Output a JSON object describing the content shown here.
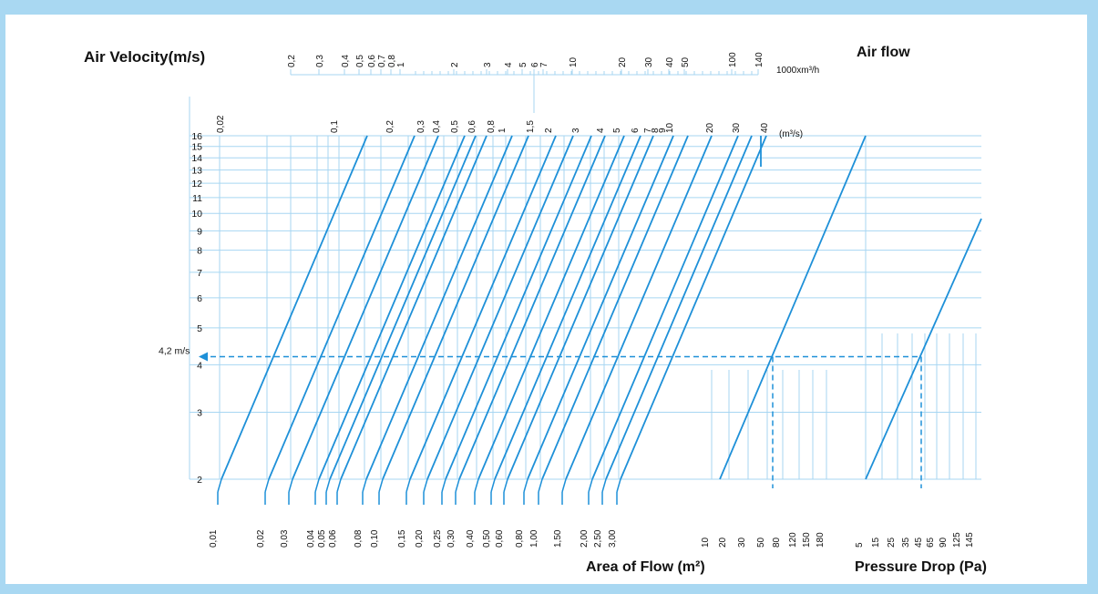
{
  "colors": {
    "frame": "#a9d8f2",
    "grid": "#a7d6f2",
    "line": "#1e90d8",
    "text": "#111111",
    "background": "#ffffff"
  },
  "chart_data": {
    "type": "line",
    "nomogram": true,
    "titles": {
      "velocity": "Air Velocity(m/s)",
      "airflow": "Air flow",
      "area": "Area of Flow (m²)",
      "pressure": "Pressure Drop (Pa)"
    },
    "units": {
      "airflow_h": "1000xm³/h",
      "airflow_s": "(m³/s)"
    },
    "velocity_axis": {
      "scale": "log",
      "range": [
        2,
        16
      ],
      "ticks": [
        "2",
        "3",
        "4",
        "5",
        "6",
        "7",
        "8",
        "9",
        "10",
        "11",
        "12",
        "13",
        "14",
        "15",
        "16"
      ]
    },
    "airflow_h_ticks": [
      "0,2",
      "0,3",
      "0,4",
      "0,5",
      "0,6",
      "0,7",
      "0,8",
      "1",
      "2",
      "3",
      "4",
      "5",
      "6",
      "7",
      "10",
      "20",
      "30",
      "40",
      "50",
      "100",
      "140"
    ],
    "airflow_s_ticks": [
      "0,02",
      "0,1",
      "0,2",
      "0,3",
      "0,4",
      "0,5",
      "0,6",
      "0,8",
      "1",
      "1,5",
      "2",
      "3",
      "4",
      "5",
      "6",
      "7",
      "8",
      "9",
      "10",
      "20",
      "30",
      "40"
    ],
    "area_ticks": [
      "0,01",
      "0,02",
      "0,03",
      "0,04",
      "0,05",
      "0,06",
      "0,08",
      "0,10",
      "0,15",
      "0,20",
      "0,25",
      "0,30",
      "0,40",
      "0,50",
      "0,60",
      "0,80",
      "1,00",
      "1,50",
      "2,00",
      "2,50",
      "3,00"
    ],
    "area_ticks_right": [
      "10",
      "20",
      "30",
      "50",
      "80",
      "120",
      "150",
      "180"
    ],
    "pressure_ticks": [
      "5",
      "15",
      "25",
      "35",
      "45",
      "65",
      "90",
      "125",
      "145"
    ],
    "example": {
      "velocity": 4.2,
      "label": "4,2 m/s"
    }
  }
}
